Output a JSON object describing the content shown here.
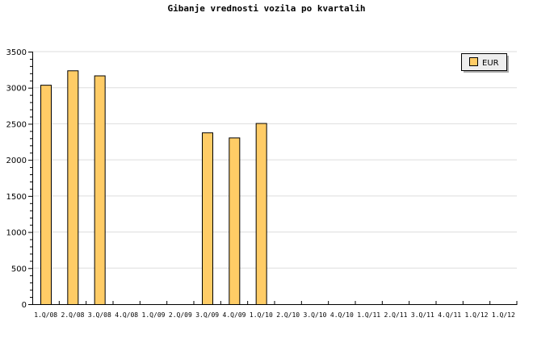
{
  "chart_data": {
    "type": "bar",
    "title": "Gibanje vrednosti vozila po kvartalih",
    "categories": [
      "1.Q/08",
      "2.Q/08",
      "3.Q/08",
      "4.Q/08",
      "1.Q/09",
      "2.Q/09",
      "3.Q/09",
      "4.Q/09",
      "1.Q/10",
      "2.Q/10",
      "3.Q/10",
      "4.Q/10",
      "1.Q/11",
      "2.Q/11",
      "3.Q/11",
      "4.Q/11",
      "1.Q/12",
      "1.Q/12"
    ],
    "series": [
      {
        "name": "EUR",
        "values": [
          3040,
          3240,
          3170,
          0,
          0,
          0,
          2380,
          2310,
          2510,
          0,
          0,
          0,
          0,
          0,
          0,
          0,
          0,
          0
        ],
        "color": "#ffcc66"
      }
    ],
    "yticks": [
      0,
      500,
      1000,
      1500,
      2000,
      2500,
      3000,
      3500
    ],
    "ylim": [
      0,
      3500
    ],
    "grid": true,
    "legend": "top-right"
  }
}
